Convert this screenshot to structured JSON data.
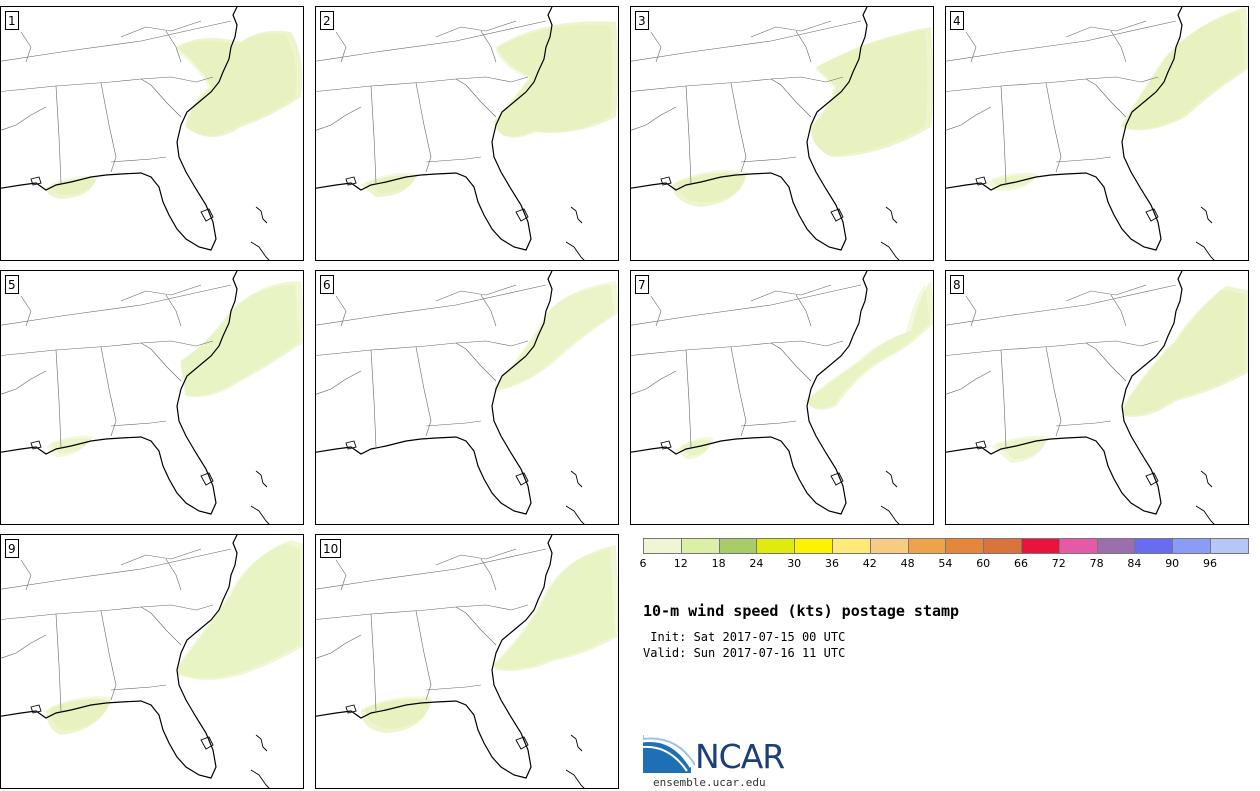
{
  "panels": [
    {
      "label": "1"
    },
    {
      "label": "2"
    },
    {
      "label": "3"
    },
    {
      "label": "4"
    },
    {
      "label": "5"
    },
    {
      "label": "6"
    },
    {
      "label": "7"
    },
    {
      "label": "8"
    },
    {
      "label": "9"
    },
    {
      "label": "10"
    }
  ],
  "colorbar": {
    "colors": [
      "#f0f5d5",
      "#dcefa6",
      "#a8cc6a",
      "#dfea0e",
      "#fff200",
      "#ffe97a",
      "#f7cc82",
      "#eea24c",
      "#e6863b",
      "#d9743a",
      "#e8143c",
      "#e45aa6",
      "#9b6fad",
      "#6a6cf0",
      "#8a9cf7",
      "#b6c6f7"
    ],
    "tick_labels": [
      "6",
      "12",
      "18",
      "24",
      "30",
      "36",
      "42",
      "48",
      "54",
      "60",
      "66",
      "72",
      "78",
      "84",
      "90",
      "96"
    ]
  },
  "title": "10-m wind speed (kts) postage stamp",
  "init": " Init: Sat 2017-07-15 00 UTC",
  "valid": "Valid: Sun 2017-07-16 11 UTC",
  "logo": {
    "word": "NCAR",
    "url": "ensemble.ucar.edu"
  }
}
